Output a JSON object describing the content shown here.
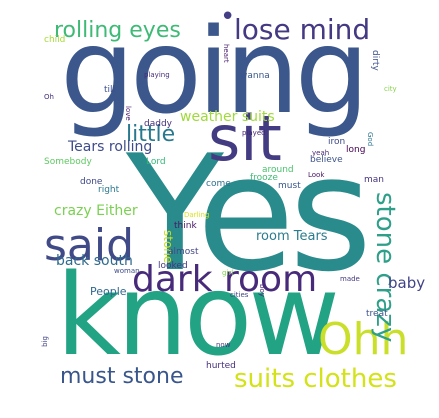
{
  "words": [
    {
      "id": "yes",
      "text": "Yes",
      "color": "#2a8b8c",
      "vertical": false
    },
    {
      "id": "going",
      "text": "going",
      "color": "#3b578b",
      "vertical": false
    },
    {
      "id": "know",
      "text": "know",
      "color": "#22a384",
      "vertical": false
    },
    {
      "id": "sit",
      "text": "sit",
      "color": "#433c82",
      "vertical": false
    },
    {
      "id": "dark-room",
      "text": "dark room",
      "color": "#472a79",
      "vertical": false
    },
    {
      "id": "said",
      "text": "said",
      "color": "#404a87",
      "vertical": false
    },
    {
      "id": "ohh",
      "text": "Ohh",
      "color": "#c9df2a",
      "vertical": false
    },
    {
      "id": "lose-mind",
      "text": "lose mind",
      "color": "#443983",
      "vertical": false
    },
    {
      "id": "rolling-eyes",
      "text": "rolling eyes",
      "color": "#3fba76",
      "vertical": false
    },
    {
      "id": "stone-crazy",
      "text": "stone crazy",
      "color": "#2e9f88",
      "vertical": true
    },
    {
      "id": "suits-clothes",
      "text": "suits clothes",
      "color": "#d4e21a",
      "vertical": false
    },
    {
      "id": "must-stone",
      "text": "must stone",
      "color": "#39568c",
      "vertical": false
    },
    {
      "id": "little",
      "text": "little",
      "color": "#29798e",
      "vertical": false
    },
    {
      "id": "weather-suits",
      "text": "weather suits",
      "color": "#9fda3a",
      "vertical": false
    },
    {
      "id": "tears-rolling",
      "text": "Tears rolling",
      "color": "#3e4c8a",
      "vertical": false
    },
    {
      "id": "crazy-either",
      "text": "crazy Either",
      "color": "#7ad151",
      "vertical": false
    },
    {
      "id": "room-tears",
      "text": "room Tears",
      "color": "#2b7c8e",
      "vertical": false
    },
    {
      "id": "back-south",
      "text": "back south",
      "color": "#2f6c8e",
      "vertical": false
    },
    {
      "id": "baby",
      "text": "baby",
      "color": "#414487",
      "vertical": false
    },
    {
      "id": "people",
      "text": "People",
      "color": "#31688e",
      "vertical": false
    },
    {
      "id": "stone-mid",
      "text": "stone",
      "color": "#c5e021",
      "vertical": true
    },
    {
      "id": "child",
      "text": "child",
      "color": "#a5db36",
      "vertical": false
    },
    {
      "id": "till",
      "text": "till",
      "color": "#3c508b",
      "vertical": false
    },
    {
      "id": "oh",
      "text": "Oh",
      "color": "#472f7d",
      "vertical": false
    },
    {
      "id": "playing",
      "text": "playing",
      "color": "#472d7b",
      "vertical": false
    },
    {
      "id": "wanna",
      "text": "wanna",
      "color": "#39568c",
      "vertical": false
    },
    {
      "id": "heart",
      "text": "heart",
      "color": "#481f70",
      "vertical": true
    },
    {
      "id": "city",
      "text": "city",
      "color": "#86d549",
      "vertical": false
    },
    {
      "id": "dirty",
      "text": "dirty",
      "color": "#3b528b",
      "vertical": true
    },
    {
      "id": "daddy",
      "text": "daddy",
      "color": "#472f7d",
      "vertical": false
    },
    {
      "id": "love",
      "text": "love",
      "color": "#48196b",
      "vertical": true
    },
    {
      "id": "played",
      "text": "played",
      "color": "#482677",
      "vertical": false
    },
    {
      "id": "iron",
      "text": "iron",
      "color": "#3e4a89",
      "vertical": false
    },
    {
      "id": "god",
      "text": "God",
      "color": "#2c728e",
      "vertical": true
    },
    {
      "id": "long",
      "text": "long",
      "color": "#440154",
      "vertical": false
    },
    {
      "id": "yeah",
      "text": "yeah",
      "color": "#482878",
      "vertical": false
    },
    {
      "id": "believe",
      "text": "believe",
      "color": "#3b528b",
      "vertical": false
    },
    {
      "id": "somebody",
      "text": "Somebody",
      "color": "#5ec962",
      "vertical": false
    },
    {
      "id": "lord",
      "text": "Lord",
      "color": "#35b779",
      "vertical": false
    },
    {
      "id": "around",
      "text": "around",
      "color": "#4ac16d",
      "vertical": false
    },
    {
      "id": "look",
      "text": "Look",
      "color": "#471063",
      "vertical": false
    },
    {
      "id": "man",
      "text": "man",
      "color": "#46337f",
      "vertical": false
    },
    {
      "id": "done",
      "text": "done",
      "color": "#3f4788",
      "vertical": false
    },
    {
      "id": "right",
      "text": "right",
      "color": "#2a788e",
      "vertical": false
    },
    {
      "id": "come",
      "text": "come",
      "color": "#2d708e",
      "vertical": false
    },
    {
      "id": "frooze",
      "text": "frooze",
      "color": "#3fbc73",
      "vertical": false
    },
    {
      "id": "must-small",
      "text": "must",
      "color": "#39568c",
      "vertical": false
    },
    {
      "id": "think",
      "text": "think",
      "color": "#481769",
      "vertical": false
    },
    {
      "id": "darling",
      "text": "Darling",
      "color": "#dde318",
      "vertical": false
    },
    {
      "id": "almost",
      "text": "almost",
      "color": "#404688",
      "vertical": false
    },
    {
      "id": "woman",
      "text": "woman",
      "color": "#3d4e8a",
      "vertical": false
    },
    {
      "id": "looked",
      "text": "looked",
      "color": "#453882",
      "vertical": false
    },
    {
      "id": "girl",
      "text": "girl",
      "color": "#7fd34e",
      "vertical": false
    },
    {
      "id": "made",
      "text": "made",
      "color": "#443a83",
      "vertical": false
    },
    {
      "id": "cities",
      "text": "cities",
      "color": "#404588",
      "vertical": false
    },
    {
      "id": "treat",
      "text": "treat",
      "color": "#3b528b",
      "vertical": false
    },
    {
      "id": "boy",
      "text": "boy",
      "color": "#482475",
      "vertical": true
    },
    {
      "id": "big",
      "text": "big",
      "color": "#414487",
      "vertical": true
    },
    {
      "id": "now",
      "text": "now",
      "color": "#453781",
      "vertical": false
    },
    {
      "id": "hurted",
      "text": "hurted",
      "color": "#46307e",
      "vertical": false
    },
    {
      "id": "dot",
      "text": "•",
      "color": "#433e85",
      "vertical": false
    }
  ]
}
